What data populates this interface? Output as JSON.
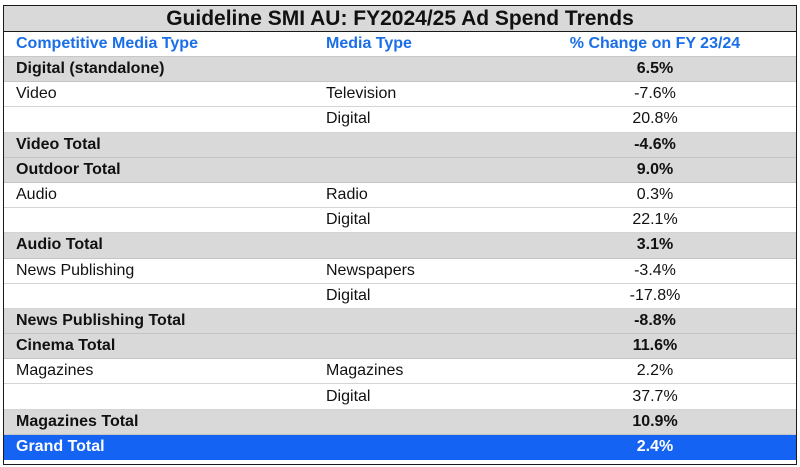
{
  "title": "Guideline SMI AU: FY2024/25 Ad Spend Trends",
  "headers": {
    "competitive_media_type": "Competitive Media Type",
    "media_type": "Media Type",
    "pct_change": "% Change on FY 23/24"
  },
  "rows": [
    {
      "competitive": "Digital (standalone)",
      "media": "",
      "pct": "6.5%",
      "total": true
    },
    {
      "competitive": "Video",
      "media": "Television",
      "pct": "-7.6%",
      "total": false
    },
    {
      "competitive": "",
      "media": "Digital",
      "pct": "20.8%",
      "total": false
    },
    {
      "competitive": "Video Total",
      "media": "",
      "pct": "-4.6%",
      "total": true
    },
    {
      "competitive": "Outdoor Total",
      "media": "",
      "pct": "9.0%",
      "total": true
    },
    {
      "competitive": "Audio",
      "media": "Radio",
      "pct": "0.3%",
      "total": false
    },
    {
      "competitive": "",
      "media": "Digital",
      "pct": "22.1%",
      "total": false
    },
    {
      "competitive": "Audio Total",
      "media": "",
      "pct": "3.1%",
      "total": true
    },
    {
      "competitive": "News Publishing",
      "media": "Newspapers",
      "pct": "-3.4%",
      "total": false
    },
    {
      "competitive": "",
      "media": "Digital",
      "pct": "-17.8%",
      "total": false
    },
    {
      "competitive": "News Publishing Total",
      "media": "",
      "pct": "-8.8%",
      "total": true
    },
    {
      "competitive": "Cinema Total",
      "media": "",
      "pct": "11.6%",
      "total": true
    },
    {
      "competitive": "Magazines",
      "media": "Magazines",
      "pct": "2.2%",
      "total": false
    },
    {
      "competitive": "",
      "media": "Digital",
      "pct": "37.7%",
      "total": false
    },
    {
      "competitive": "Magazines Total",
      "media": "",
      "pct": "10.9%",
      "total": true
    }
  ],
  "grand_total": {
    "label": "Grand Total",
    "pct": "2.4%"
  },
  "colors": {
    "header_text": "#1a6fe8",
    "total_row_bg": "#d9d9d9",
    "grand_total_bg": "#1463f3"
  }
}
